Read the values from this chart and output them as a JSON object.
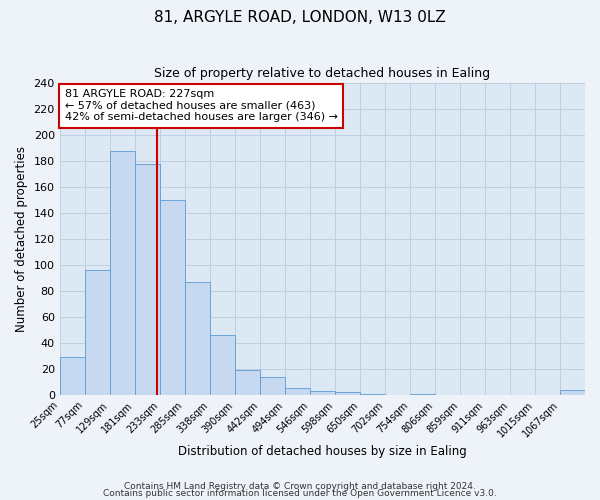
{
  "title": "81, ARGYLE ROAD, LONDON, W13 0LZ",
  "subtitle": "Size of property relative to detached houses in Ealing",
  "xlabel": "Distribution of detached houses by size in Ealing",
  "ylabel": "Number of detached properties",
  "bin_labels": [
    "25sqm",
    "77sqm",
    "129sqm",
    "181sqm",
    "233sqm",
    "285sqm",
    "338sqm",
    "390sqm",
    "442sqm",
    "494sqm",
    "546sqm",
    "598sqm",
    "650sqm",
    "702sqm",
    "754sqm",
    "806sqm",
    "859sqm",
    "911sqm",
    "963sqm",
    "1015sqm",
    "1067sqm"
  ],
  "bin_edges": [
    25,
    77,
    129,
    181,
    233,
    285,
    338,
    390,
    442,
    494,
    546,
    598,
    650,
    702,
    754,
    806,
    859,
    911,
    963,
    1015,
    1067,
    1119
  ],
  "bar_values": [
    29,
    96,
    188,
    178,
    150,
    87,
    46,
    19,
    14,
    5,
    3,
    2,
    1,
    0,
    1,
    0,
    0,
    0,
    0,
    0,
    4
  ],
  "bar_color": "#c6d9f0",
  "bar_edge_color": "#5b9bd5",
  "property_value": 227,
  "vline_color": "#cc0000",
  "annotation_title": "81 ARGYLE ROAD: 227sqm",
  "annotation_line1": "← 57% of detached houses are smaller (463)",
  "annotation_line2": "42% of semi-detached houses are larger (346) →",
  "annotation_box_color": "#ffffff",
  "annotation_box_edge_color": "#cc0000",
  "ylim": [
    0,
    240
  ],
  "yticks": [
    0,
    20,
    40,
    60,
    80,
    100,
    120,
    140,
    160,
    180,
    200,
    220,
    240
  ],
  "grid_color": "#c0cfe0",
  "background_color": "#dce9f5",
  "fig_background_color": "#eef3fa",
  "footnote1": "Contains HM Land Registry data © Crown copyright and database right 2024.",
  "footnote2": "Contains public sector information licensed under the Open Government Licence v3.0."
}
